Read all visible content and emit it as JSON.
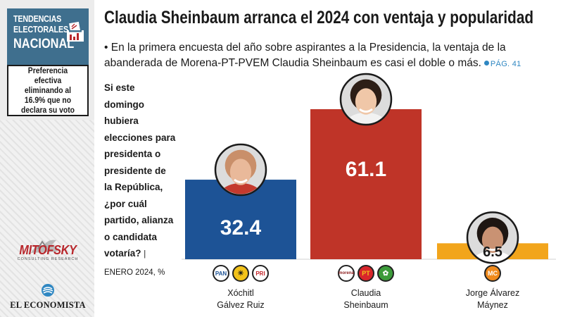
{
  "sidebar": {
    "badge": {
      "line1": "TENDENCIAS",
      "line2": "ELECTORALES",
      "line3": "NACIONAL"
    },
    "note": "Preferencia efectiva eliminando al 16.9% que no declara su voto",
    "mitofsky": {
      "name": "MITOFSKY",
      "tagline": "consulting research"
    },
    "publisher": "EL ECONOMISTA"
  },
  "header": {
    "title": "Claudia Sheinbaum arranca el 2024 con ventaja y popularidad",
    "subtitle": "• En la primera encuesta del año sobre aspirantes a la Presidencia, la ventaja de la abanderada de Morena-PT-PVEM Claudia Sheinbaum es casi el doble o más.",
    "page_ref": "PÁG. 41"
  },
  "question": {
    "text": "Si este domingo hubiera elecciones para presidenta o presidente de la República, ¿por cuál partido, alianza o candidata votaría?",
    "source": "| ENERO 2024, %"
  },
  "colors": {
    "galvez": "#1d5396",
    "sheinbaum": "#bf3428",
    "maynez": "#f2a51c",
    "brand_blue": "#3f6f8e"
  },
  "chart_data": {
    "type": "bar",
    "unit": "%",
    "categories": [
      "Xóchitl Gálvez Ruiz",
      "Claudia Sheinbaum",
      "Jorge Álvarez Máynez"
    ],
    "category_lines": [
      [
        "Xóchitl",
        "Gálvez Ruiz"
      ],
      [
        "Claudia",
        "Sheinbaum"
      ],
      [
        "Jorge Álvarez",
        "Máynez"
      ]
    ],
    "values": [
      32.4,
      61.1,
      6.5
    ],
    "value_labels": [
      "32.4",
      "61.1",
      "6.5"
    ],
    "party_logos": [
      [
        "PAN",
        "PRI-sun",
        "PRI"
      ],
      [
        "morena",
        "PT",
        "PVEM"
      ],
      [
        "MC"
      ]
    ],
    "ylim": [
      0,
      61.1
    ],
    "grid": false,
    "legend": "none"
  }
}
